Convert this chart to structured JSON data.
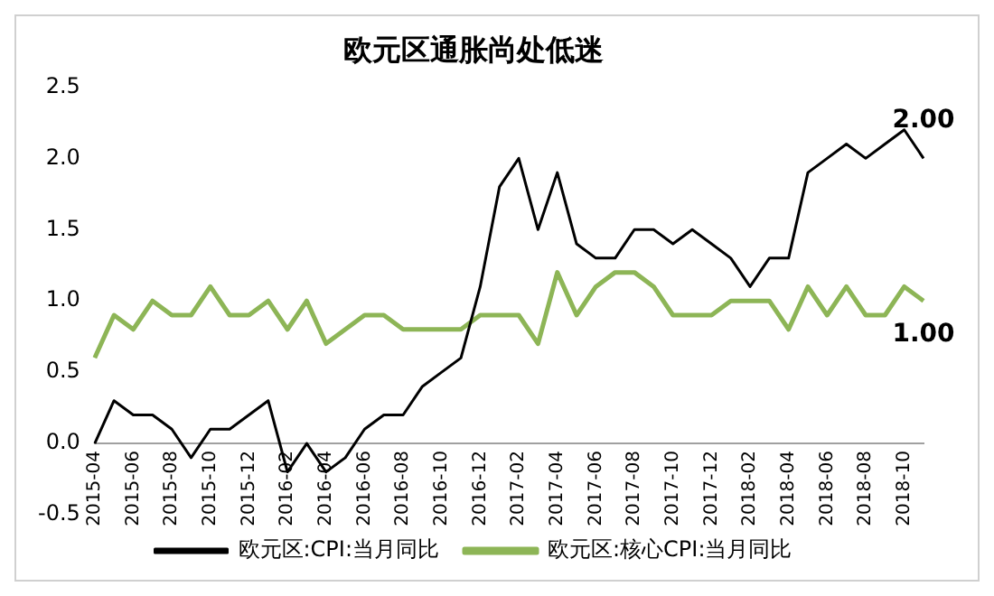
{
  "chart_data": {
    "type": "line",
    "title": "欧元区通胀尚处低迷",
    "categories": [
      "2015-04",
      null,
      "2015-06",
      null,
      "2015-08",
      null,
      "2015-10",
      null,
      "2015-12",
      null,
      "2016-02",
      null,
      "2016-04",
      null,
      "2016-06",
      null,
      "2016-08",
      null,
      "2016-10",
      null,
      "2016-12",
      null,
      "2017-02",
      null,
      "2017-04",
      null,
      "2017-06",
      null,
      "2017-08",
      null,
      "2017-10",
      null,
      "2017-12",
      null,
      "2018-02",
      null,
      "2018-04",
      null,
      "2018-06",
      null,
      "2018-08",
      null,
      "2018-10",
      null
    ],
    "series": [
      {
        "name": "欧元区:CPI:当月同比",
        "color": "#000000",
        "values": [
          0.0,
          0.3,
          0.2,
          0.2,
          0.1,
          -0.1,
          0.1,
          0.1,
          0.2,
          0.3,
          -0.2,
          0.0,
          -0.2,
          -0.1,
          0.1,
          0.2,
          0.2,
          0.4,
          0.5,
          0.6,
          1.1,
          1.8,
          2.0,
          1.5,
          1.9,
          1.4,
          1.3,
          1.3,
          1.5,
          1.5,
          1.4,
          1.5,
          1.4,
          1.3,
          1.1,
          1.3,
          1.3,
          1.9,
          2.0,
          2.1,
          2.0,
          2.1,
          2.2,
          2.0
        ],
        "value_labels": [
          null,
          null,
          null,
          null,
          null,
          null,
          null,
          null,
          null,
          null,
          null,
          null,
          null,
          null,
          null,
          null,
          null,
          null,
          null,
          null,
          null,
          null,
          null,
          null,
          null,
          null,
          null,
          null,
          null,
          null,
          null,
          null,
          null,
          null,
          null,
          null,
          null,
          null,
          null,
          null,
          null,
          null,
          null,
          "2.00"
        ]
      },
      {
        "name": "欧元区:核心CPI:当月同比",
        "color": "#8db556",
        "values": [
          0.6,
          0.9,
          0.8,
          1.0,
          0.9,
          0.9,
          1.1,
          0.9,
          0.9,
          1.0,
          0.8,
          1.0,
          0.7,
          0.8,
          0.9,
          0.9,
          0.8,
          0.8,
          0.8,
          0.8,
          0.9,
          0.9,
          0.9,
          0.7,
          1.2,
          0.9,
          1.1,
          1.2,
          1.2,
          1.1,
          0.9,
          0.9,
          0.9,
          1.0,
          1.0,
          1.0,
          0.8,
          1.1,
          0.9,
          1.1,
          0.9,
          0.9,
          1.1,
          1.0
        ],
        "value_labels": [
          null,
          null,
          null,
          null,
          null,
          null,
          null,
          null,
          null,
          null,
          null,
          null,
          null,
          null,
          null,
          null,
          null,
          null,
          null,
          null,
          null,
          null,
          null,
          null,
          null,
          null,
          null,
          null,
          null,
          null,
          null,
          null,
          null,
          null,
          null,
          null,
          null,
          null,
          null,
          null,
          null,
          null,
          null,
          "1.00"
        ]
      }
    ],
    "ylim": [
      -0.5,
      2.5
    ],
    "yticks": [
      {
        "value": -0.5,
        "label": "-0.5"
      },
      {
        "value": 0,
        "label": "0.0"
      },
      {
        "value": 0.5,
        "label": "0.5"
      },
      {
        "value": 1,
        "label": "1.0"
      },
      {
        "value": 1.5,
        "label": "1.5"
      },
      {
        "value": 2,
        "label": "2.0"
      },
      {
        "value": 2.5,
        "label": "2.5"
      }
    ],
    "legend": "bottom",
    "marker": "none",
    "line_style": "solid"
  }
}
